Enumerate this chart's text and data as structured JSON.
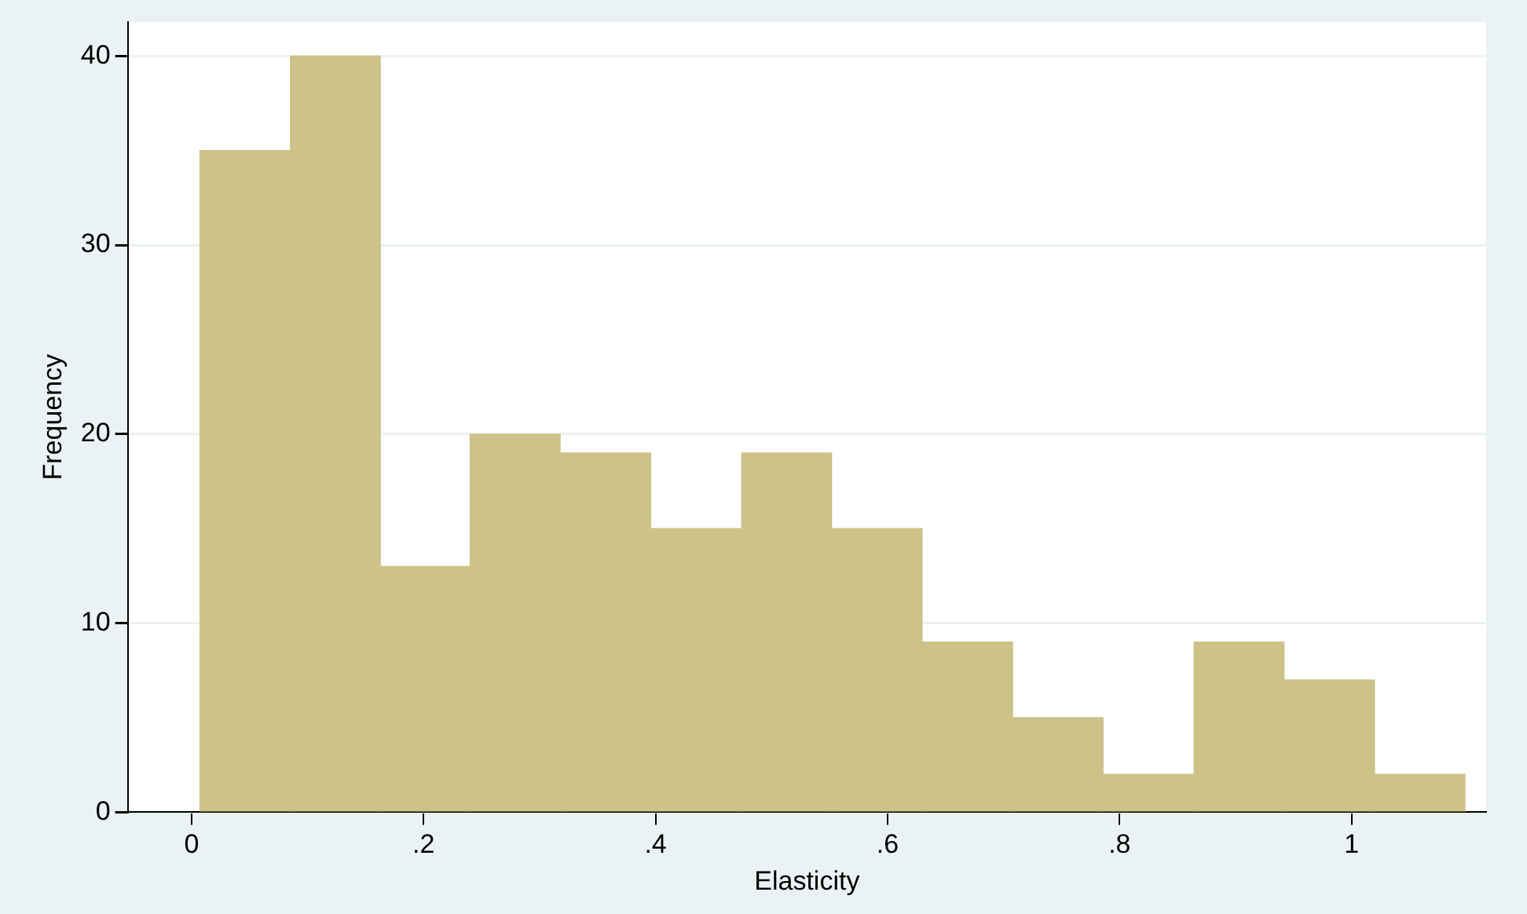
{
  "chart_data": {
    "type": "histogram",
    "xlabel": "Elasticity",
    "ylabel": "Frequency",
    "bins": [
      0.007,
      0.085,
      0.163,
      0.24,
      0.318,
      0.396,
      0.474,
      0.552,
      0.63,
      0.708,
      0.786,
      0.864,
      0.942,
      1.02,
      1.098
    ],
    "values": [
      35,
      40,
      13,
      20,
      19,
      15,
      19,
      15,
      9,
      5,
      2,
      9,
      7,
      2
    ],
    "color": "#cdc287",
    "xlim": [
      -0.055,
      1.116
    ],
    "xticks": [
      0,
      {
        "value": 0.2,
        "label": ".2"
      },
      {
        "value": 0.4,
        "label": ".4"
      },
      {
        "value": 0.6,
        "label": ".6"
      },
      {
        "value": 0.8,
        "label": ".8"
      },
      1
    ],
    "ylim": [
      0,
      41.8
    ],
    "yticks": [
      0,
      10,
      20,
      30,
      40
    ],
    "grid": "y",
    "legend": false
  }
}
